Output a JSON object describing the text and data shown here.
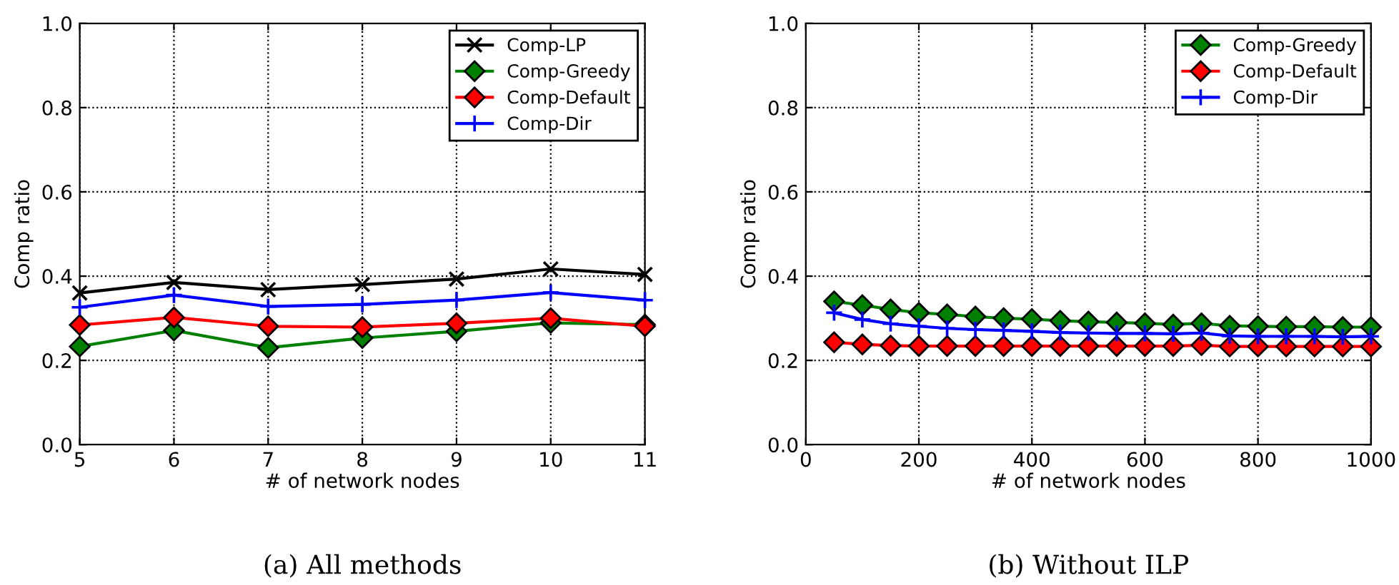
{
  "chart_data": [
    {
      "type": "line",
      "xlabel": "# of network nodes",
      "ylabel": "Comp ratio",
      "annotations": [
        "(a) All methods"
      ],
      "x": [
        5,
        6,
        7,
        8,
        9,
        10,
        11
      ],
      "series": [
        {
          "name": "Comp-LP",
          "color": "#000000",
          "marker": "cross",
          "values": [
            0.36,
            0.385,
            0.368,
            0.38,
            0.393,
            0.417,
            0.404
          ]
        },
        {
          "name": "Comp-Greedy",
          "color": "#008000",
          "marker": "diamond",
          "values": [
            0.233,
            0.271,
            0.23,
            0.253,
            0.269,
            0.289,
            0.285
          ]
        },
        {
          "name": "Comp-Default",
          "color": "#ff0000",
          "marker": "diamond",
          "values": [
            0.284,
            0.302,
            0.281,
            0.279,
            0.288,
            0.3,
            0.281
          ]
        },
        {
          "name": "Comp-Dir",
          "color": "#0000ff",
          "marker": "plus",
          "values": [
            0.326,
            0.355,
            0.328,
            0.333,
            0.343,
            0.361,
            0.343
          ]
        }
      ],
      "xlim": [
        5,
        11
      ],
      "xticks": [
        5,
        6,
        7,
        8,
        9,
        10,
        11
      ],
      "ylim": [
        0,
        1
      ],
      "yticks": [
        {
          "value": 0,
          "label": "0.0"
        },
        {
          "value": 0.2,
          "label": "0.2"
        },
        {
          "value": 0.4,
          "label": "0.4"
        },
        {
          "value": 0.6,
          "label": "0.6"
        },
        {
          "value": 0.8,
          "label": "0.8"
        },
        {
          "value": 1,
          "label": "1.0"
        }
      ],
      "grid": true,
      "legend": "top right",
      "line_style": "solid"
    },
    {
      "type": "line",
      "xlabel": "# of network nodes",
      "ylabel": "Comp ratio",
      "annotations": [
        "(b) Without ILP"
      ],
      "x": [
        50,
        100,
        150,
        200,
        250,
        300,
        350,
        400,
        450,
        500,
        550,
        600,
        650,
        700,
        750,
        800,
        850,
        900,
        950,
        1000
      ],
      "series": [
        {
          "name": "Comp-Greedy",
          "color": "#008000",
          "marker": "diamond",
          "values": [
            0.34,
            0.331,
            0.321,
            0.313,
            0.309,
            0.304,
            0.3,
            0.298,
            0.294,
            0.292,
            0.29,
            0.288,
            0.285,
            0.288,
            0.282,
            0.281,
            0.28,
            0.28,
            0.279,
            0.279
          ]
        },
        {
          "name": "Comp-Default",
          "color": "#ff0000",
          "marker": "diamond",
          "values": [
            0.243,
            0.238,
            0.235,
            0.234,
            0.234,
            0.234,
            0.234,
            0.234,
            0.234,
            0.234,
            0.234,
            0.234,
            0.234,
            0.236,
            0.233,
            0.233,
            0.233,
            0.233,
            0.233,
            0.233
          ]
        },
        {
          "name": "Comp-Dir",
          "color": "#0000ff",
          "marker": "plus",
          "values": [
            0.313,
            0.297,
            0.287,
            0.281,
            0.276,
            0.273,
            0.271,
            0.269,
            0.266,
            0.265,
            0.264,
            0.264,
            0.263,
            0.265,
            0.258,
            0.257,
            0.257,
            0.257,
            0.256,
            0.257
          ]
        }
      ],
      "xlim": [
        0,
        1000
      ],
      "xticks": [
        0,
        200,
        400,
        600,
        800,
        1000
      ],
      "ylim": [
        0,
        1
      ],
      "yticks": [
        {
          "value": 0,
          "label": "0.0"
        },
        {
          "value": 0.2,
          "label": "0.2"
        },
        {
          "value": 0.4,
          "label": "0.4"
        },
        {
          "value": 0.6,
          "label": "0.6"
        },
        {
          "value": 0.8,
          "label": "0.8"
        },
        {
          "value": 1,
          "label": "1.0"
        }
      ],
      "grid": true,
      "legend": "top right",
      "line_style": "solid"
    }
  ]
}
